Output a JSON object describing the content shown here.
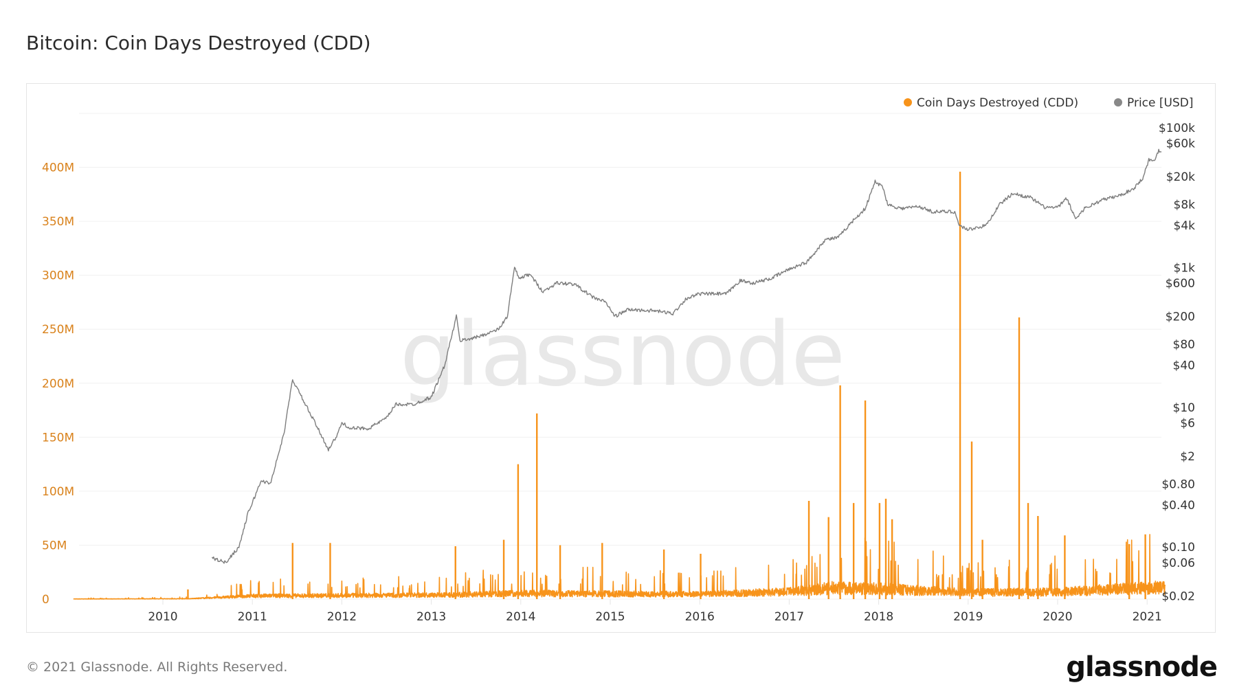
{
  "title": "Bitcoin: Coin Days Destroyed (CDD)",
  "footer": "© 2021 Glassnode. All Rights Reserved.",
  "logo": "glassnode",
  "watermark": "glassnode",
  "chart_data": {
    "type": "line",
    "title": "Bitcoin: Coin Days Destroyed (CDD)",
    "legend_position": "top-right",
    "grid": true,
    "colors": {
      "cdd": "#f7931a",
      "price": "#888888",
      "left_axis": "#d9821c"
    },
    "x_ticks": [
      "2010",
      "2011",
      "2012",
      "2013",
      "2014",
      "2015",
      "2016",
      "2017",
      "2018",
      "2019",
      "2020",
      "2021"
    ],
    "xlim": [
      2009.0,
      2021.2
    ],
    "y_left": {
      "ticks": [
        "0",
        "50M",
        "100M",
        "150M",
        "200M",
        "250M",
        "300M",
        "350M",
        "400M"
      ],
      "ylim": [
        0,
        450000000
      ]
    },
    "y_right": {
      "scale": "log",
      "ticks": [
        "$100k",
        "$60k",
        "$20k",
        "$8k",
        "$4k",
        "$1k",
        "$600",
        "$200",
        "$80",
        "$40",
        "$10",
        "$6",
        "$2",
        "$0.80",
        "$0.40",
        "$0.10",
        "$0.06",
        "$0.02"
      ],
      "tick_values": [
        100000,
        60000,
        20000,
        8000,
        4000,
        1000,
        600,
        200,
        80,
        40,
        10,
        6,
        2,
        0.8,
        0.4,
        0.1,
        0.06,
        0.02
      ],
      "ylim": [
        0.02,
        100000
      ]
    },
    "series": [
      {
        "name": "Coin Days Destroyed (CDD)",
        "axis": "left",
        "typical_level": [
          [
            2009.0,
            200000
          ],
          [
            2010.3,
            500000
          ],
          [
            2010.6,
            2000000
          ],
          [
            2011.0,
            4000000
          ],
          [
            2013.0,
            5000000
          ],
          [
            2014.0,
            7000000
          ],
          [
            2016.0,
            6000000
          ],
          [
            2017.0,
            9000000
          ],
          [
            2017.5,
            14000000
          ],
          [
            2018.2,
            12000000
          ],
          [
            2019.0,
            8000000
          ],
          [
            2020.0,
            9000000
          ],
          [
            2021.1,
            14000000
          ]
        ],
        "spikes": [
          [
            2010.28,
            9000000
          ],
          [
            2011.45,
            52000000
          ],
          [
            2011.87,
            52000000
          ],
          [
            2013.27,
            49000000
          ],
          [
            2013.81,
            55000000
          ],
          [
            2013.97,
            125000000
          ],
          [
            2014.18,
            172000000
          ],
          [
            2014.44,
            50000000
          ],
          [
            2014.91,
            52000000
          ],
          [
            2015.6,
            46000000
          ],
          [
            2016.01,
            42000000
          ],
          [
            2017.22,
            91000000
          ],
          [
            2017.44,
            76000000
          ],
          [
            2017.57,
            198000000
          ],
          [
            2017.72,
            89000000
          ],
          [
            2017.85,
            184000000
          ],
          [
            2018.01,
            89000000
          ],
          [
            2018.08,
            93000000
          ],
          [
            2018.15,
            74000000
          ],
          [
            2018.91,
            396000000
          ],
          [
            2019.04,
            146000000
          ],
          [
            2019.16,
            55000000
          ],
          [
            2019.57,
            261000000
          ],
          [
            2019.67,
            89000000
          ],
          [
            2019.78,
            77000000
          ],
          [
            2020.08,
            59000000
          ],
          [
            2020.8,
            51000000
          ],
          [
            2020.98,
            60000000
          ]
        ]
      },
      {
        "name": "Price [USD]",
        "axis": "right",
        "points": [
          [
            2010.55,
            0.07
          ],
          [
            2010.7,
            0.06
          ],
          [
            2010.85,
            0.1
          ],
          [
            2010.95,
            0.3
          ],
          [
            2011.1,
            0.9
          ],
          [
            2011.2,
            0.8
          ],
          [
            2011.35,
            4
          ],
          [
            2011.45,
            25
          ],
          [
            2011.55,
            14
          ],
          [
            2011.7,
            6
          ],
          [
            2011.85,
            2.5
          ],
          [
            2011.95,
            4
          ],
          [
            2012.0,
            6
          ],
          [
            2012.1,
            5
          ],
          [
            2012.3,
            5
          ],
          [
            2012.5,
            7
          ],
          [
            2012.6,
            11
          ],
          [
            2012.8,
            11
          ],
          [
            2013.0,
            14
          ],
          [
            2013.15,
            40
          ],
          [
            2013.28,
            200
          ],
          [
            2013.32,
            90
          ],
          [
            2013.5,
            100
          ],
          [
            2013.75,
            130
          ],
          [
            2013.85,
            200
          ],
          [
            2013.93,
            1000
          ],
          [
            2013.98,
            700
          ],
          [
            2014.1,
            800
          ],
          [
            2014.25,
            450
          ],
          [
            2014.4,
            600
          ],
          [
            2014.6,
            580
          ],
          [
            2014.8,
            380
          ],
          [
            2014.95,
            320
          ],
          [
            2015.05,
            200
          ],
          [
            2015.2,
            250
          ],
          [
            2015.5,
            240
          ],
          [
            2015.7,
            220
          ],
          [
            2015.85,
            360
          ],
          [
            2016.0,
            420
          ],
          [
            2016.3,
            420
          ],
          [
            2016.45,
            650
          ],
          [
            2016.6,
            600
          ],
          [
            2016.8,
            700
          ],
          [
            2017.0,
            950
          ],
          [
            2017.2,
            1200
          ],
          [
            2017.4,
            2500
          ],
          [
            2017.55,
            2700
          ],
          [
            2017.7,
            4500
          ],
          [
            2017.85,
            7000
          ],
          [
            2017.96,
            17000
          ],
          [
            2018.05,
            14000
          ],
          [
            2018.1,
            8000
          ],
          [
            2018.25,
            7000
          ],
          [
            2018.45,
            7500
          ],
          [
            2018.6,
            6300
          ],
          [
            2018.85,
            6300
          ],
          [
            2018.9,
            4000
          ],
          [
            2019.0,
            3500
          ],
          [
            2019.2,
            4000
          ],
          [
            2019.35,
            8000
          ],
          [
            2019.5,
            11500
          ],
          [
            2019.7,
            10000
          ],
          [
            2019.85,
            7300
          ],
          [
            2020.0,
            7200
          ],
          [
            2020.1,
            9800
          ],
          [
            2020.2,
            5000
          ],
          [
            2020.3,
            7000
          ],
          [
            2020.5,
            9300
          ],
          [
            2020.7,
            10800
          ],
          [
            2020.85,
            13500
          ],
          [
            2020.95,
            19000
          ],
          [
            2021.02,
            35000
          ],
          [
            2021.08,
            33000
          ],
          [
            2021.13,
            48000
          ],
          [
            2021.16,
            45000
          ]
        ]
      }
    ]
  }
}
